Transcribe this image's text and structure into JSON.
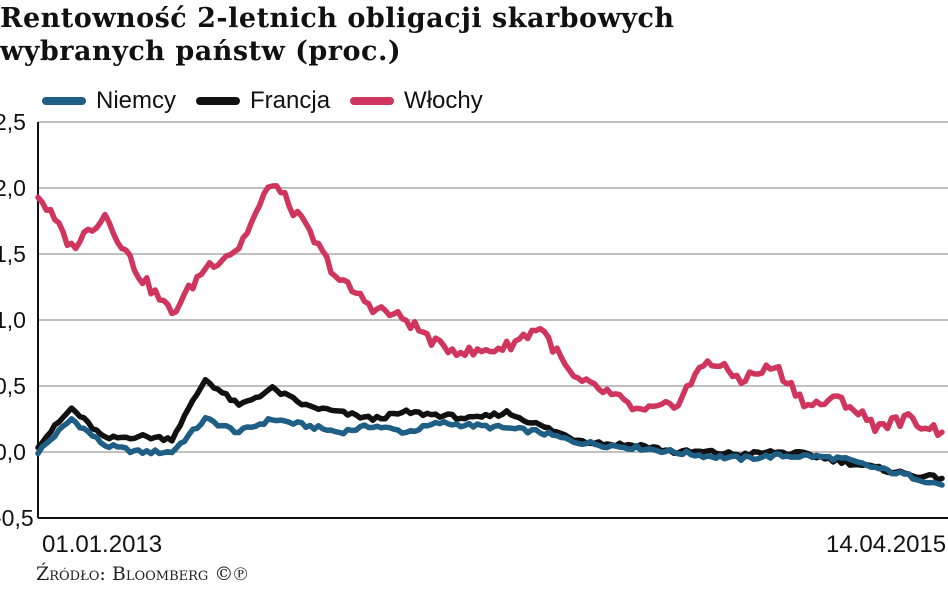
{
  "title_line1": "Rentowność 2-letnich obligacji skarbowych",
  "title_line2": "wybranych państw (proc.)",
  "source": "Źródło: Bloomberg ©℗",
  "chart_data": {
    "type": "line",
    "title": "Rentowność 2-letnich obligacji skarbowych wybranych państw (proc.)",
    "xlabel": "",
    "ylabel": "",
    "ylim": [
      -0.5,
      2.5
    ],
    "yticks": [
      -0.5,
      0.0,
      0.5,
      1.0,
      1.5,
      2.0,
      2.5
    ],
    "ytick_labels": [
      "-0,5",
      "0,0",
      "0,5",
      "1,0",
      "1,5",
      "2,0",
      "2,5"
    ],
    "xlim": [
      "01.01.2013",
      "14.04.2015"
    ],
    "x_labels": [
      "01.01.2013",
      "14.04.2015"
    ],
    "grid": true,
    "legend_position": "top-left",
    "x": [
      "2013-01",
      "2013-02",
      "2013-03",
      "2013-04",
      "2013-05",
      "2013-06",
      "2013-07",
      "2013-08",
      "2013-09",
      "2013-10",
      "2013-11",
      "2013-12",
      "2014-01",
      "2014-02",
      "2014-03",
      "2014-04",
      "2014-05",
      "2014-06",
      "2014-07",
      "2014-08",
      "2014-09",
      "2014-10",
      "2014-11",
      "2014-12",
      "2015-01",
      "2015-02",
      "2015-03",
      "2015-04"
    ],
    "series": [
      {
        "name": "Niemcy",
        "color": "#1f5f86",
        "values": [
          0.0,
          0.25,
          0.05,
          0.0,
          0.0,
          0.25,
          0.15,
          0.25,
          0.2,
          0.15,
          0.2,
          0.15,
          0.22,
          0.2,
          0.18,
          0.15,
          0.08,
          0.05,
          0.03,
          0.0,
          -0.03,
          -0.05,
          -0.03,
          -0.03,
          -0.05,
          -0.12,
          -0.18,
          -0.25
        ]
      },
      {
        "name": "Francja",
        "color": "#111111",
        "values": [
          0.05,
          0.33,
          0.1,
          0.12,
          0.1,
          0.55,
          0.35,
          0.48,
          0.35,
          0.3,
          0.25,
          0.3,
          0.28,
          0.25,
          0.3,
          0.2,
          0.1,
          0.06,
          0.05,
          0.0,
          0.0,
          -0.02,
          0.0,
          -0.02,
          -0.07,
          -0.12,
          -0.17,
          -0.2
        ]
      },
      {
        "name": "Włochy",
        "color": "#d0365d",
        "values": [
          1.95,
          1.55,
          1.8,
          1.35,
          1.05,
          1.4,
          1.55,
          2.05,
          1.7,
          1.3,
          1.1,
          1.0,
          0.8,
          0.75,
          0.8,
          0.95,
          0.55,
          0.45,
          0.3,
          0.35,
          0.7,
          0.55,
          0.65,
          0.35,
          0.4,
          0.2,
          0.25,
          0.15
        ]
      }
    ]
  }
}
